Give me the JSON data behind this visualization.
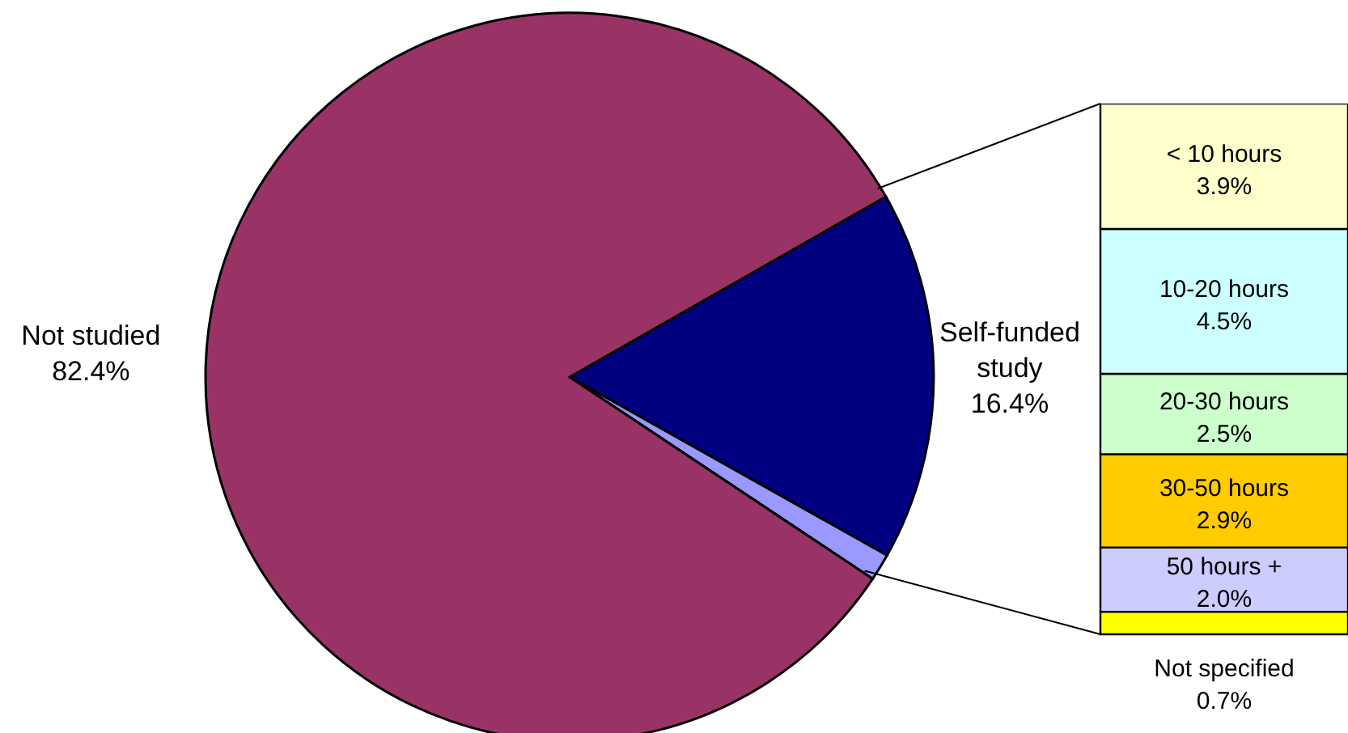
{
  "chart_data": [
    {
      "type": "pie",
      "categories": [
        "Self-funded study",
        null,
        "Not studied"
      ],
      "values": [
        16.4,
        1.2,
        82.4
      ],
      "colors": [
        "#000080",
        "#9999ff",
        "#993366"
      ],
      "value_labels": [
        "16.4%",
        null,
        "82.4%"
      ]
    },
    {
      "type": "bar",
      "stacked": true,
      "categories": [
        null
      ],
      "series": [
        {
          "name": "Not specified",
          "color": "#ffff00",
          "values": [
            0.7
          ],
          "value_labels": [
            "0.7%"
          ]
        },
        {
          "name": "50 hours +",
          "color": "#ccccff",
          "values": [
            2.0
          ],
          "value_labels": [
            "2.0%"
          ]
        },
        {
          "name": "30-50 hours",
          "color": "#ffcc00",
          "values": [
            2.9
          ],
          "value_labels": [
            "2.9%"
          ]
        },
        {
          "name": "20-30 hours",
          "color": "#ccffcc",
          "values": [
            2.5
          ],
          "value_labels": [
            "2.5%"
          ]
        },
        {
          "name": "10-20 hours",
          "color": "#ccffff",
          "values": [
            4.5
          ],
          "value_labels": [
            "4.5%"
          ]
        },
        {
          "name": "< 10 hours",
          "color": "#ffffcc",
          "values": [
            3.9
          ],
          "value_labels": [
            "3.9%"
          ]
        }
      ]
    }
  ]
}
